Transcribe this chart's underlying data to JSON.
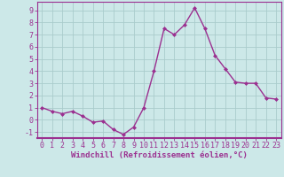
{
  "x": [
    0,
    1,
    2,
    3,
    4,
    5,
    6,
    7,
    8,
    9,
    10,
    11,
    12,
    13,
    14,
    15,
    16,
    17,
    18,
    19,
    20,
    21,
    22,
    23
  ],
  "y": [
    1.0,
    0.7,
    0.5,
    0.7,
    0.3,
    -0.2,
    -0.1,
    -0.8,
    -1.2,
    -0.6,
    1.0,
    4.0,
    7.5,
    7.0,
    7.8,
    9.2,
    7.5,
    5.3,
    4.2,
    3.1,
    3.0,
    3.0,
    1.8,
    1.7
  ],
  "line_color": "#9b3090",
  "marker": "D",
  "marker_size": 2.0,
  "bg_color": "#cce8e8",
  "grid_color": "#aacccc",
  "xlabel": "Windchill (Refroidissement éolien,°C)",
  "xlim": [
    -0.5,
    23.5
  ],
  "ylim": [
    -1.5,
    9.7
  ],
  "xticks": [
    0,
    1,
    2,
    3,
    4,
    5,
    6,
    7,
    8,
    9,
    10,
    11,
    12,
    13,
    14,
    15,
    16,
    17,
    18,
    19,
    20,
    21,
    22,
    23
  ],
  "yticks": [
    -1,
    0,
    1,
    2,
    3,
    4,
    5,
    6,
    7,
    8,
    9
  ],
  "font_color": "#9b3090",
  "line_width": 1.0,
  "border_color": "#9b3090",
  "tick_fontsize": 6.0,
  "xlabel_fontsize": 6.5
}
